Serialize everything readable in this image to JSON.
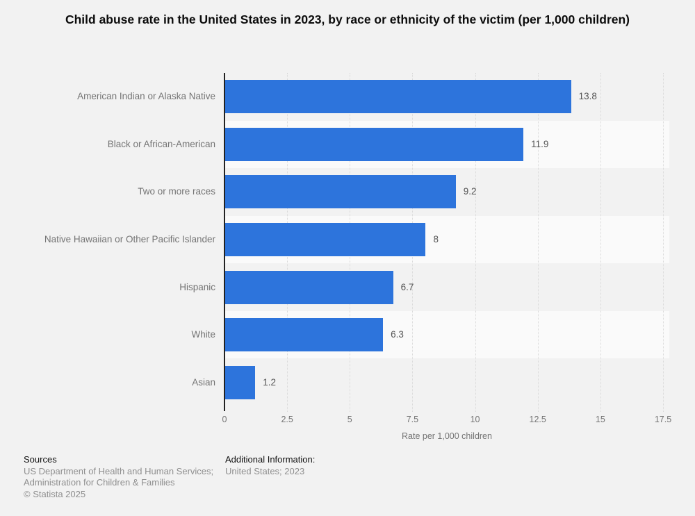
{
  "page": {
    "background_color": "#f2f2f2"
  },
  "chart_data": {
    "type": "bar",
    "orientation": "horizontal",
    "title": "Child abuse rate in the United States in 2023, by race or ethnicity of the victim (per 1,000 children)",
    "categories": [
      "American Indian or Alaska Native",
      "Black or African-American",
      "Two or more races",
      "Native Hawaiian or Other Pacific Islander",
      "Hispanic",
      "White",
      "Asian"
    ],
    "values": [
      13.8,
      11.9,
      9.2,
      8,
      6.7,
      6.3,
      1.2
    ],
    "value_labels": [
      "13.8",
      "11.9",
      "9.2",
      "8",
      "6.7",
      "6.3",
      "1.2"
    ],
    "xlabel": "Rate per 1,000 children",
    "ylabel": "",
    "xlim": [
      0,
      17.75
    ],
    "xticks": [
      0,
      2.5,
      5,
      7.5,
      10,
      12.5,
      15,
      17.5
    ],
    "xtick_labels": [
      "0",
      "2.5",
      "5",
      "7.5",
      "10",
      "12.5",
      "15",
      "17.5"
    ],
    "grid": "vertical-dotted",
    "legend": null,
    "bar_color": "#2d74dc",
    "band_color_odd": "#f2f2f2",
    "band_color_even": "#fafafa",
    "axis_line_color": "#222222",
    "gridline_color": "#d9d9d9"
  },
  "footer": {
    "sources_heading": "Sources",
    "sources_line1": "US Department of Health and Human Services;",
    "sources_line2": "Administration for Children & Families",
    "copyright": "© Statista 2025",
    "additional_heading": "Additional Information:",
    "additional_text": "United States; 2023"
  }
}
